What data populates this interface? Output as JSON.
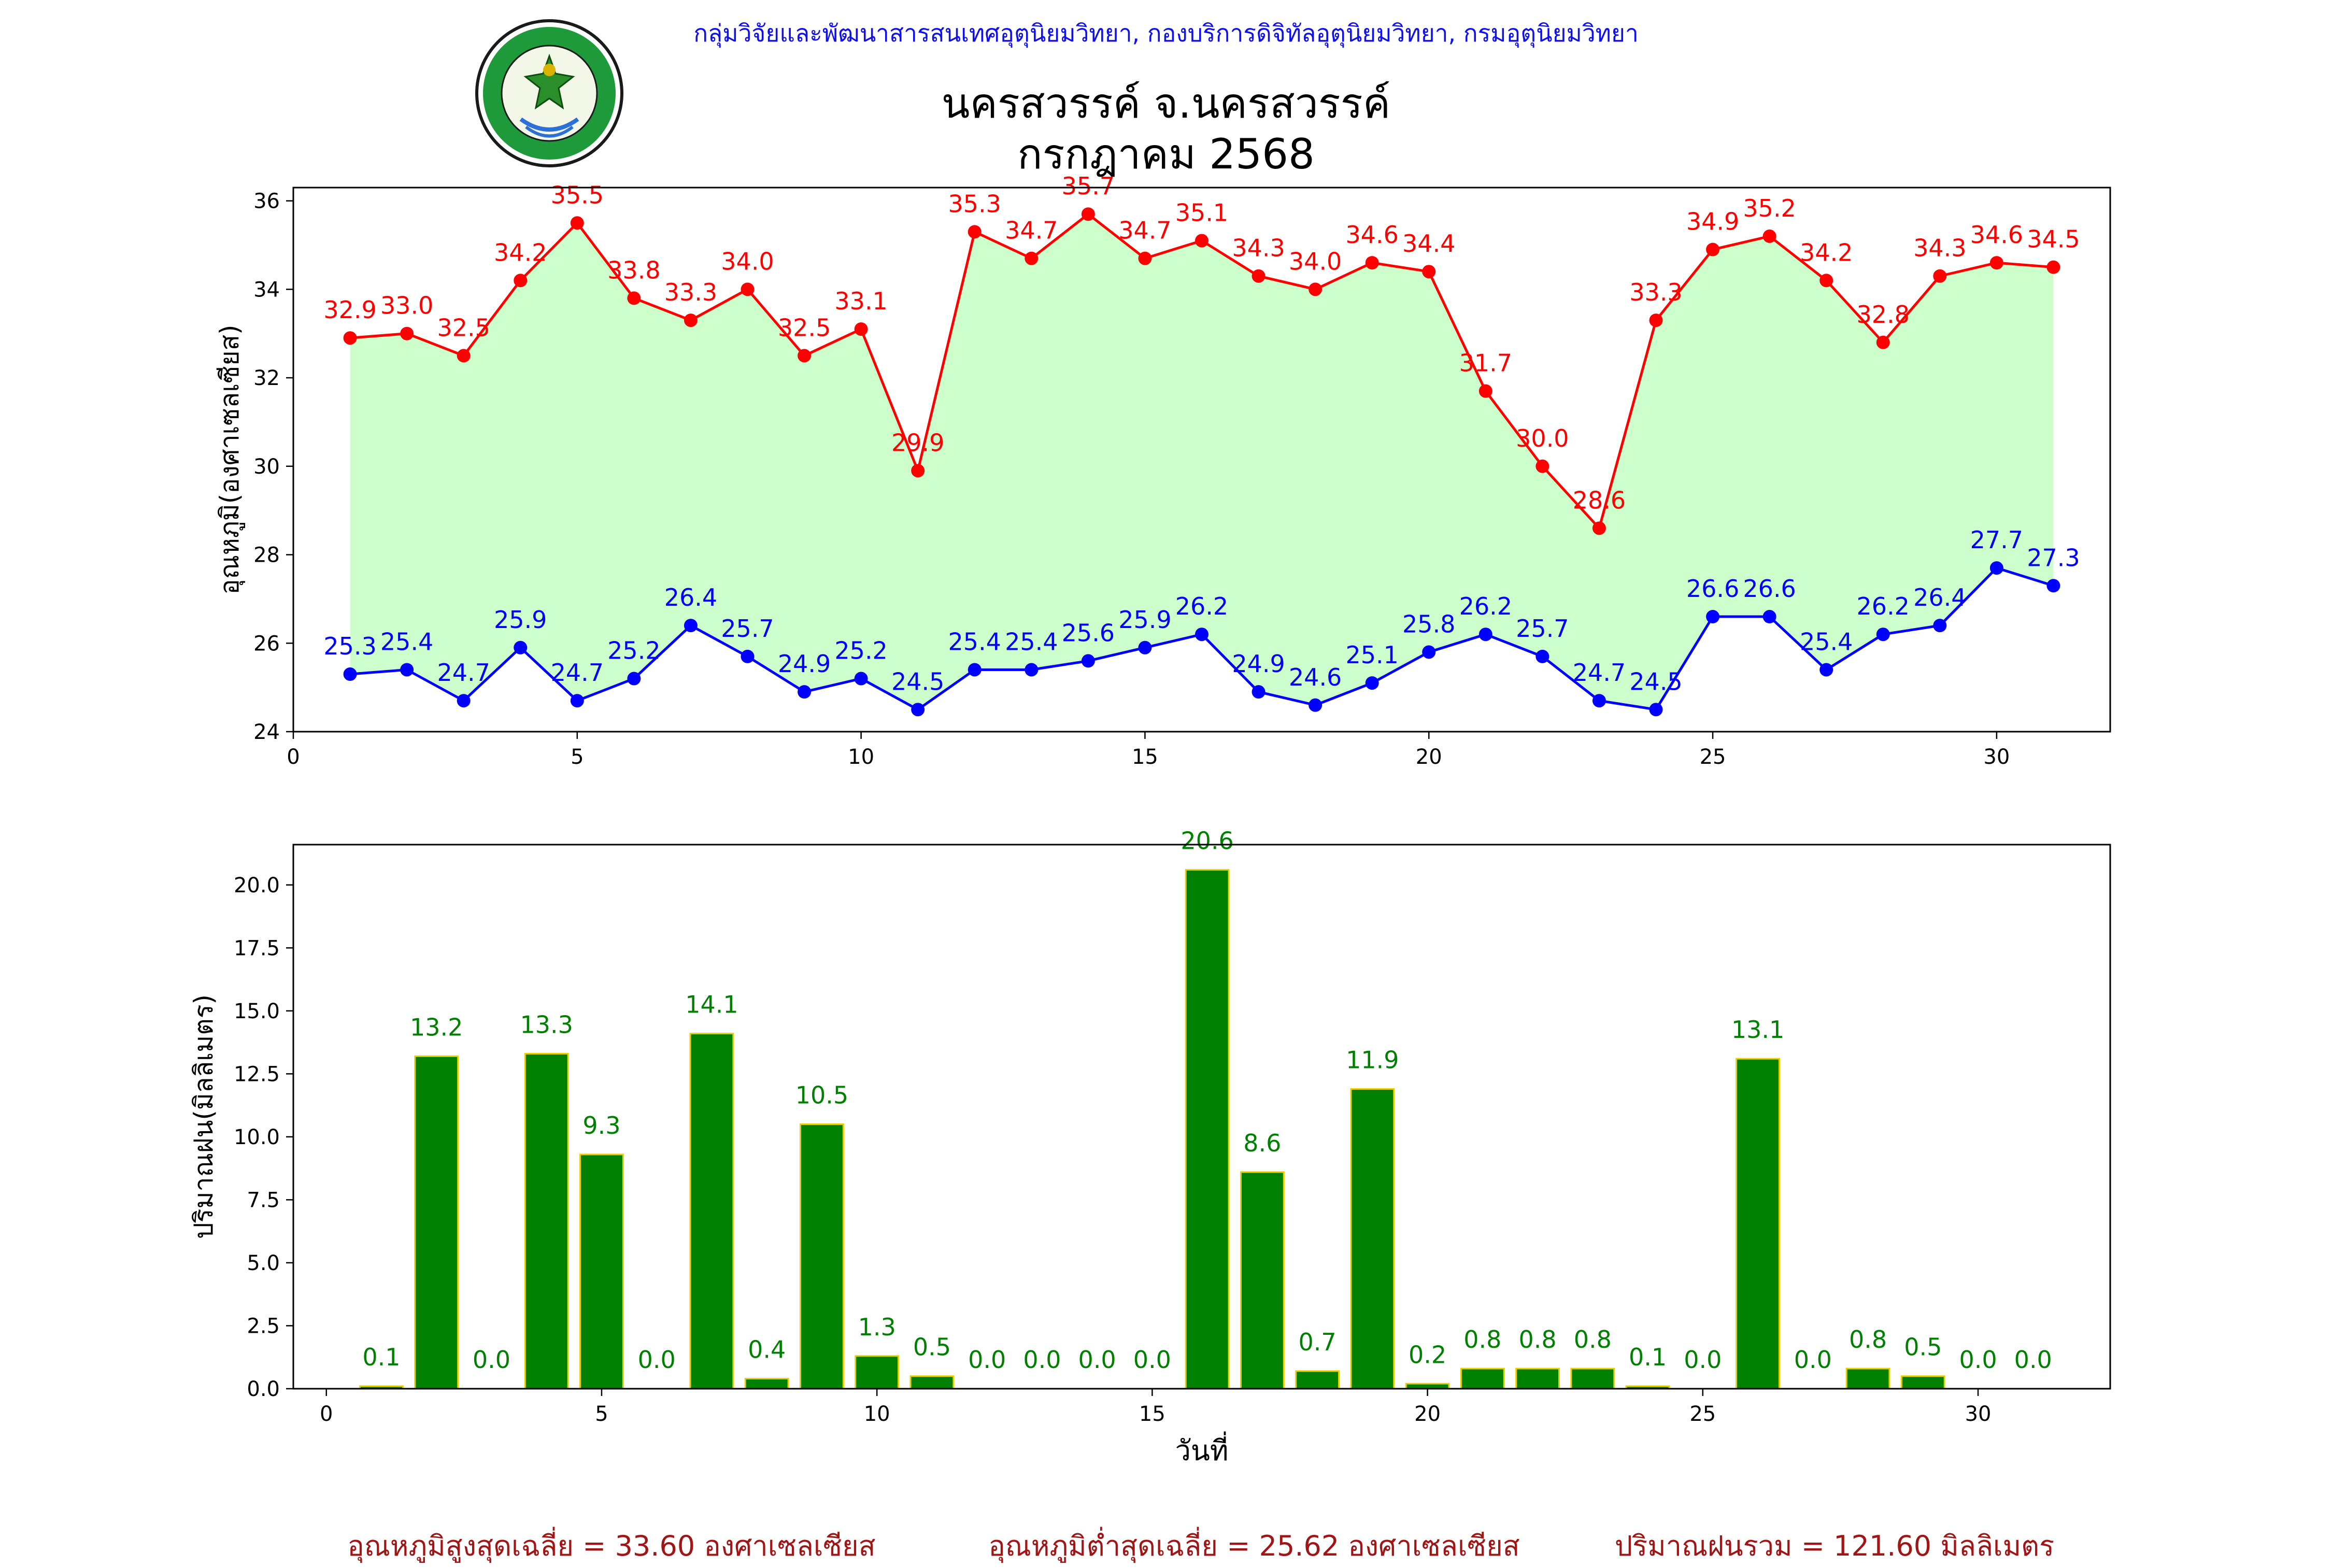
{
  "header": {
    "org_line": "กลุ่มวิจัยและพัฒนาสารสนเทศอุตุนิยมวิทยา, กองบริการดิจิทัลอุตุนิยมวิทยา, กรมอุตุนิยมวิทยา",
    "station_title": "นครสวรรค์  จ.นครสวรรค์",
    "month_title": "กรกฎาคม 2568",
    "logo_text": "กรมอุตุนิยมวิทยา METEOROLOGICAL DEPARTMENT"
  },
  "colors": {
    "max_line": "#ff0000",
    "min_line": "#0000ff",
    "fill": "#ccffcc",
    "bar_fill": "#008000",
    "bar_edge": "#e8d000",
    "footer_text": "#a01515",
    "header_text": "#1010ee"
  },
  "chart_data": [
    {
      "type": "line",
      "ylabel": "อุณหภูมิ(องศาเซลเซียส)",
      "xlabel": "",
      "xlim": [
        0,
        32
      ],
      "ylim": [
        24,
        36.3
      ],
      "xticks": [
        0,
        5,
        10,
        15,
        20,
        25,
        30
      ],
      "yticks": [
        24,
        26,
        28,
        30,
        32,
        34,
        36
      ],
      "grid": false,
      "x": [
        1,
        2,
        3,
        4,
        5,
        6,
        7,
        8,
        9,
        10,
        11,
        12,
        13,
        14,
        15,
        16,
        17,
        18,
        19,
        20,
        21,
        22,
        23,
        24,
        25,
        26,
        27,
        28,
        29,
        30,
        31
      ],
      "series": [
        {
          "key": "max",
          "values": [
            32.9,
            33.0,
            32.5,
            34.2,
            35.5,
            33.8,
            33.3,
            34.0,
            32.5,
            33.1,
            29.9,
            35.3,
            34.7,
            35.7,
            34.7,
            35.1,
            34.3,
            34.0,
            34.6,
            34.4,
            31.7,
            30.0,
            28.6,
            33.3,
            34.9,
            35.2,
            34.2,
            32.8,
            34.3,
            34.6,
            34.5
          ]
        },
        {
          "key": "min",
          "values": [
            25.3,
            25.4,
            24.7,
            25.9,
            24.7,
            25.2,
            26.4,
            25.7,
            24.9,
            25.2,
            24.5,
            25.4,
            25.4,
            25.6,
            25.9,
            26.2,
            24.9,
            24.6,
            25.1,
            25.8,
            26.2,
            25.7,
            24.7,
            24.5,
            26.6,
            26.6,
            25.4,
            26.2,
            26.4,
            27.7,
            27.3
          ]
        }
      ]
    },
    {
      "type": "bar",
      "ylabel": "ปริมาณฝน(มิลลิเมตร)",
      "xlabel": "วันที่",
      "xlim": [
        -0.6,
        32.4
      ],
      "ylim": [
        0,
        21.6
      ],
      "xticks": [
        0,
        5,
        10,
        15,
        20,
        25,
        30
      ],
      "yticks": [
        0.0,
        2.5,
        5.0,
        7.5,
        10.0,
        12.5,
        15.0,
        17.5,
        20.0
      ],
      "grid": false,
      "x": [
        1,
        2,
        3,
        4,
        5,
        6,
        7,
        8,
        9,
        10,
        11,
        12,
        13,
        14,
        15,
        16,
        17,
        18,
        19,
        20,
        21,
        22,
        23,
        24,
        25,
        26,
        27,
        28,
        29,
        30,
        31
      ],
      "values": [
        0.1,
        13.2,
        0.0,
        13.3,
        9.3,
        0.0,
        14.1,
        0.4,
        10.5,
        1.3,
        0.5,
        0.0,
        0.0,
        0.0,
        0.0,
        20.6,
        8.6,
        0.7,
        11.9,
        0.2,
        0.8,
        0.8,
        0.8,
        0.1,
        0.0,
        13.1,
        0.0,
        0.8,
        0.5,
        0.0,
        0.0
      ]
    }
  ],
  "footer": {
    "avg_max": "อุณหภูมิสูงสุดเฉลี่ย = 33.60 องศาเซลเซียส",
    "avg_min": "อุณหภูมิต่ำสุดเฉลี่ย = 25.62 องศาเซลเซียส",
    "total_rain": "ปริมาณฝนรวม = 121.60 มิลลิเมตร"
  }
}
